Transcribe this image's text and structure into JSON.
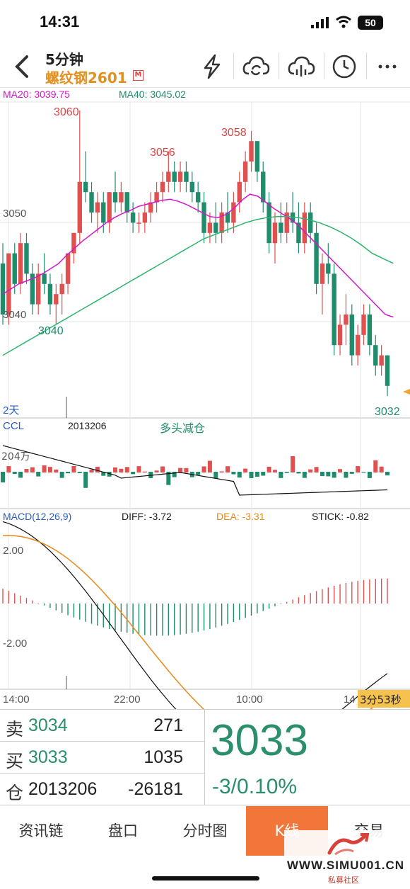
{
  "status_bar": {
    "time": "14:31",
    "battery": "50"
  },
  "header": {
    "period": "5分钟",
    "contract": "螺纹钢2601",
    "main_badge": "M"
  },
  "icons": [
    "back-icon",
    "lightning-icon",
    "cloud-sync-icon",
    "cloud-split-icon",
    "clock-icon",
    "more-icon"
  ],
  "colors": {
    "up": "#e0504f",
    "down": "#1f8c6b",
    "ma20": "#d417c8",
    "ma40": "#2db56b",
    "dea": "#e8891a",
    "accent": "#f2763a",
    "contract": "#e2901f"
  },
  "indicators": {
    "ma20": "MA20: 3039.75",
    "ma40": "MA40: 3045.02",
    "ccl_name": "CCL",
    "ccl_value": "2013206",
    "ccl_signal": "多头减仓",
    "ccl_axis": "204万",
    "macd_name": "MACD(12,26,9)",
    "diff": "DIFF: -3.72",
    "dea": "DEA: -3.31",
    "stick": "STICK: -0.82",
    "macd_pos": "2.00",
    "macd_neg": "-2.00"
  },
  "chart_data": {
    "type": "candlestick",
    "price_labels": {
      "high1": "3060",
      "high2": "3056",
      "high3": "3058",
      "low1": "3040",
      "last": "3032"
    },
    "y_axis_labels": [
      "3050",
      "3040"
    ],
    "time_span": "2天",
    "x_ticks": [
      "14:00",
      "22:00",
      "10:00",
      "14"
    ],
    "countdown": "3分53秒",
    "ohlc": [
      [
        3045,
        3047,
        3039,
        3040
      ],
      [
        3040,
        3046,
        3039,
        3046
      ],
      [
        3046,
        3047,
        3042,
        3043
      ],
      [
        3043,
        3048,
        3042,
        3047
      ],
      [
        3047,
        3048,
        3043,
        3044
      ],
      [
        3044,
        3045,
        3040,
        3041
      ],
      [
        3041,
        3045,
        3040,
        3044
      ],
      [
        3044,
        3046,
        3042,
        3043
      ],
      [
        3043,
        3044,
        3040,
        3041
      ],
      [
        3041,
        3043,
        3039,
        3042
      ],
      [
        3042,
        3044,
        3040,
        3043
      ],
      [
        3043,
        3046,
        3042,
        3046
      ],
      [
        3046,
        3048,
        3045,
        3048
      ],
      [
        3048,
        3060,
        3047,
        3053
      ],
      [
        3053,
        3056,
        3051,
        3052
      ],
      [
        3052,
        3053,
        3049,
        3050
      ],
      [
        3050,
        3052,
        3048,
        3051
      ],
      [
        3051,
        3052,
        3048,
        3049
      ],
      [
        3049,
        3052,
        3048,
        3052
      ],
      [
        3052,
        3054,
        3050,
        3051
      ],
      [
        3051,
        3053,
        3050,
        3052
      ],
      [
        3052,
        3052,
        3049,
        3050
      ],
      [
        3050,
        3051,
        3048,
        3049
      ],
      [
        3049,
        3050,
        3048,
        3049
      ],
      [
        3049,
        3051,
        3048,
        3050
      ],
      [
        3050,
        3052,
        3049,
        3051
      ],
      [
        3051,
        3053,
        3050,
        3052
      ],
      [
        3052,
        3054,
        3051,
        3053
      ],
      [
        3053,
        3056,
        3052,
        3054
      ],
      [
        3054,
        3055,
        3052,
        3053
      ],
      [
        3053,
        3055,
        3052,
        3054
      ],
      [
        3054,
        3055,
        3052,
        3053
      ],
      [
        3053,
        3054,
        3051,
        3052
      ],
      [
        3052,
        3053,
        3050,
        3051
      ],
      [
        3051,
        3052,
        3047,
        3048
      ],
      [
        3048,
        3050,
        3047,
        3049
      ],
      [
        3049,
        3051,
        3047,
        3048
      ],
      [
        3048,
        3051,
        3047,
        3050
      ],
      [
        3050,
        3052,
        3048,
        3049
      ],
      [
        3049,
        3052,
        3048,
        3051
      ],
      [
        3051,
        3054,
        3050,
        3053
      ],
      [
        3053,
        3056,
        3052,
        3055
      ],
      [
        3055,
        3058,
        3054,
        3057
      ],
      [
        3057,
        3057,
        3053,
        3054
      ],
      [
        3054,
        3055,
        3050,
        3051
      ],
      [
        3051,
        3052,
        3046,
        3047
      ],
      [
        3047,
        3050,
        3045,
        3049
      ],
      [
        3049,
        3051,
        3047,
        3048
      ],
      [
        3048,
        3051,
        3047,
        3050
      ],
      [
        3050,
        3052,
        3048,
        3049
      ],
      [
        3049,
        3051,
        3046,
        3047
      ],
      [
        3047,
        3051,
        3046,
        3050
      ],
      [
        3050,
        3051,
        3047,
        3048
      ],
      [
        3048,
        3049,
        3042,
        3043
      ],
      [
        3043,
        3046,
        3040,
        3045
      ],
      [
        3045,
        3047,
        3043,
        3044
      ],
      [
        3044,
        3045,
        3036,
        3037
      ],
      [
        3037,
        3040,
        3036,
        3039
      ],
      [
        3039,
        3042,
        3037,
        3040
      ],
      [
        3040,
        3041,
        3035,
        3036
      ],
      [
        3036,
        3039,
        3035,
        3038
      ],
      [
        3038,
        3041,
        3037,
        3040
      ],
      [
        3040,
        3041,
        3036,
        3037
      ],
      [
        3037,
        3038,
        3034,
        3035
      ],
      [
        3035,
        3037,
        3034,
        3036
      ],
      [
        3036,
        3036,
        3032,
        3033
      ]
    ],
    "ma20": [
      3042,
      3042.5,
      3043,
      3043.3,
      3043.6,
      3044,
      3044.5,
      3045,
      3045.8,
      3046.5,
      3047.2,
      3047.8,
      3048.4,
      3049,
      3049.5,
      3049.9,
      3050.2,
      3050.6,
      3050.8,
      3051,
      3051.2,
      3051.3,
      3051.1,
      3050.8,
      3050.4,
      3050,
      3049.6,
      3049.5,
      3049.8,
      3050.4,
      3051.2,
      3051.8,
      3051.6,
      3051,
      3050.4,
      3049.9,
      3049.4,
      3048.8,
      3048,
      3047.2,
      3046.4,
      3045.6,
      3044.8,
      3044,
      3043.2,
      3042.4,
      3041.6,
      3040.8,
      3040,
      3039.75
    ],
    "ma40": [
      3036,
      3036.6,
      3037.2,
      3037.8,
      3038.4,
      3039,
      3039.6,
      3040.2,
      3040.8,
      3041.4,
      3042,
      3042.6,
      3043.2,
      3043.8,
      3044.4,
      3045,
      3045.6,
      3046.2,
      3046.8,
      3047.4,
      3047.8,
      3048.2,
      3048.6,
      3049,
      3049.3,
      3049.5,
      3049.6,
      3049.6,
      3049.5,
      3049.3,
      3049,
      3048.6,
      3048.1,
      3047.5,
      3046.8,
      3046,
      3045.5,
      3045.02
    ]
  },
  "quote": {
    "sell_label": "卖",
    "sell_price": "3034",
    "sell_volume": "271",
    "buy_label": "买",
    "buy_price": "3033",
    "buy_volume": "1035",
    "oi_label": "仓",
    "open_interest": "2013206",
    "oi_change": "-26181",
    "last_price": "3033",
    "change": "-3/0.10%"
  },
  "tabs": [
    "资讯链",
    "盘口",
    "分时图",
    "K线",
    "交易"
  ],
  "watermark": {
    "url": "WWW.SIMU001.CN",
    "sub": "私募社区"
  }
}
